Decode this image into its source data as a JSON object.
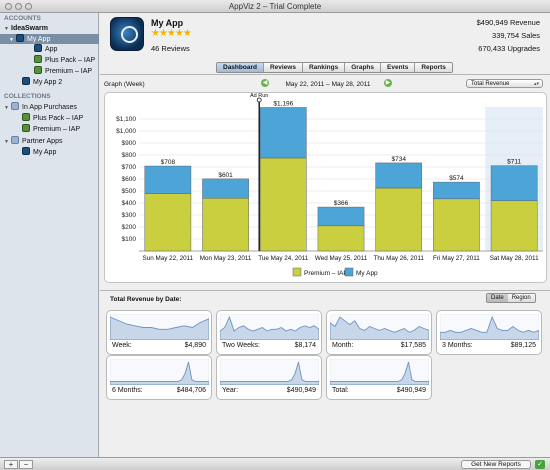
{
  "window": {
    "title": "AppViz 2 – Trial Complete"
  },
  "sidebar": {
    "accounts_header": "ACCOUNTS",
    "account": "IdeaSwarm",
    "items": [
      {
        "label": "My App",
        "icon": "app-icon",
        "selected": true
      },
      {
        "label": "App",
        "icon": "app-icon"
      },
      {
        "label": "Plus Pack – IAP",
        "icon": "iap-icon"
      },
      {
        "label": "Premium – IAP",
        "icon": "iap-icon"
      },
      {
        "label": "My App 2",
        "icon": "app-icon"
      }
    ],
    "collections_header": "COLLECTIONS",
    "collections": [
      {
        "label": "In App Purchases",
        "icon": "folder-icon"
      },
      {
        "label": "Plus Pack – IAP",
        "icon": "iap-icon"
      },
      {
        "label": "Premium – IAP",
        "icon": "iap-icon"
      },
      {
        "label": "Partner Apps",
        "icon": "folder-icon"
      },
      {
        "label": "My App",
        "icon": "app-icon"
      }
    ]
  },
  "bottombar": {
    "add": "+",
    "remove": "−",
    "get_new_reports": "Get New Reports",
    "check": "✓"
  },
  "app": {
    "name": "My App",
    "stars": "★★★★★",
    "reviews": "46 Reviews"
  },
  "stats": {
    "revenue": "$490,949 Revenue",
    "sales": "339,754 Sales",
    "upgrades": "670,433 Upgrades"
  },
  "tabs": [
    "Dashboard",
    "Reviews",
    "Rankings",
    "Graphs",
    "Events",
    "Reports"
  ],
  "graph": {
    "label": "Graph (Week)",
    "date_range": "May 22, 2011 – May 28, 2011",
    "prev": "◀",
    "next": "▶",
    "metric": "Total Revenue",
    "metric_arrow": "▴▾"
  },
  "chart_data": {
    "type": "bar",
    "stacked": true,
    "categories": [
      "Sun May 22, 2011",
      "Mon May 23, 2011",
      "Tue May 24, 2011",
      "Wed May 25, 2011",
      "Thu May 26, 2011",
      "Fri May 27, 2011",
      "Sat May 28, 2011"
    ],
    "series": [
      {
        "name": "Premium – IAP",
        "color": "#c9cf3e",
        "values": [
          478,
          440,
          775,
          210,
          525,
          435,
          420
        ]
      },
      {
        "name": "My App",
        "color": "#4ca5d6",
        "values": [
          230,
          161,
          421,
          156,
          209,
          139,
          291
        ]
      }
    ],
    "totals": [
      "$708",
      "$601",
      "$1,196",
      "$366",
      "$734",
      "$574",
      "$711"
    ],
    "yticks": [
      "$100",
      "$200",
      "$300",
      "$400",
      "$500",
      "$600",
      "$700",
      "$800",
      "$900",
      "$1,000",
      "$1,100"
    ],
    "ylim": [
      0,
      1200
    ],
    "event_marker": {
      "label": "Ad Run",
      "category": "Tue May 24, 2011"
    },
    "highlight_category": "Sat May 28, 2011",
    "legend_position": "bottom"
  },
  "totals_section": {
    "title": "Total Revenue by Date:",
    "toggle": [
      "Date",
      "Region"
    ],
    "cards": [
      {
        "label": "Week:",
        "value": "$4,890"
      },
      {
        "label": "Two Weeks:",
        "value": "$8,174"
      },
      {
        "label": "Month:",
        "value": "$17,585"
      },
      {
        "label": "3 Months:",
        "value": "$89,125"
      },
      {
        "label": "6 Months:",
        "value": "$484,706"
      },
      {
        "label": "Year:",
        "value": "$490,949"
      },
      {
        "label": "Total:",
        "value": "$490,949"
      }
    ]
  },
  "colors": {
    "accent": "#7a8ea6",
    "iap_bar": "#c9cf3e",
    "app_bar": "#4ca5d6",
    "sparkline": "#6f94bf"
  }
}
